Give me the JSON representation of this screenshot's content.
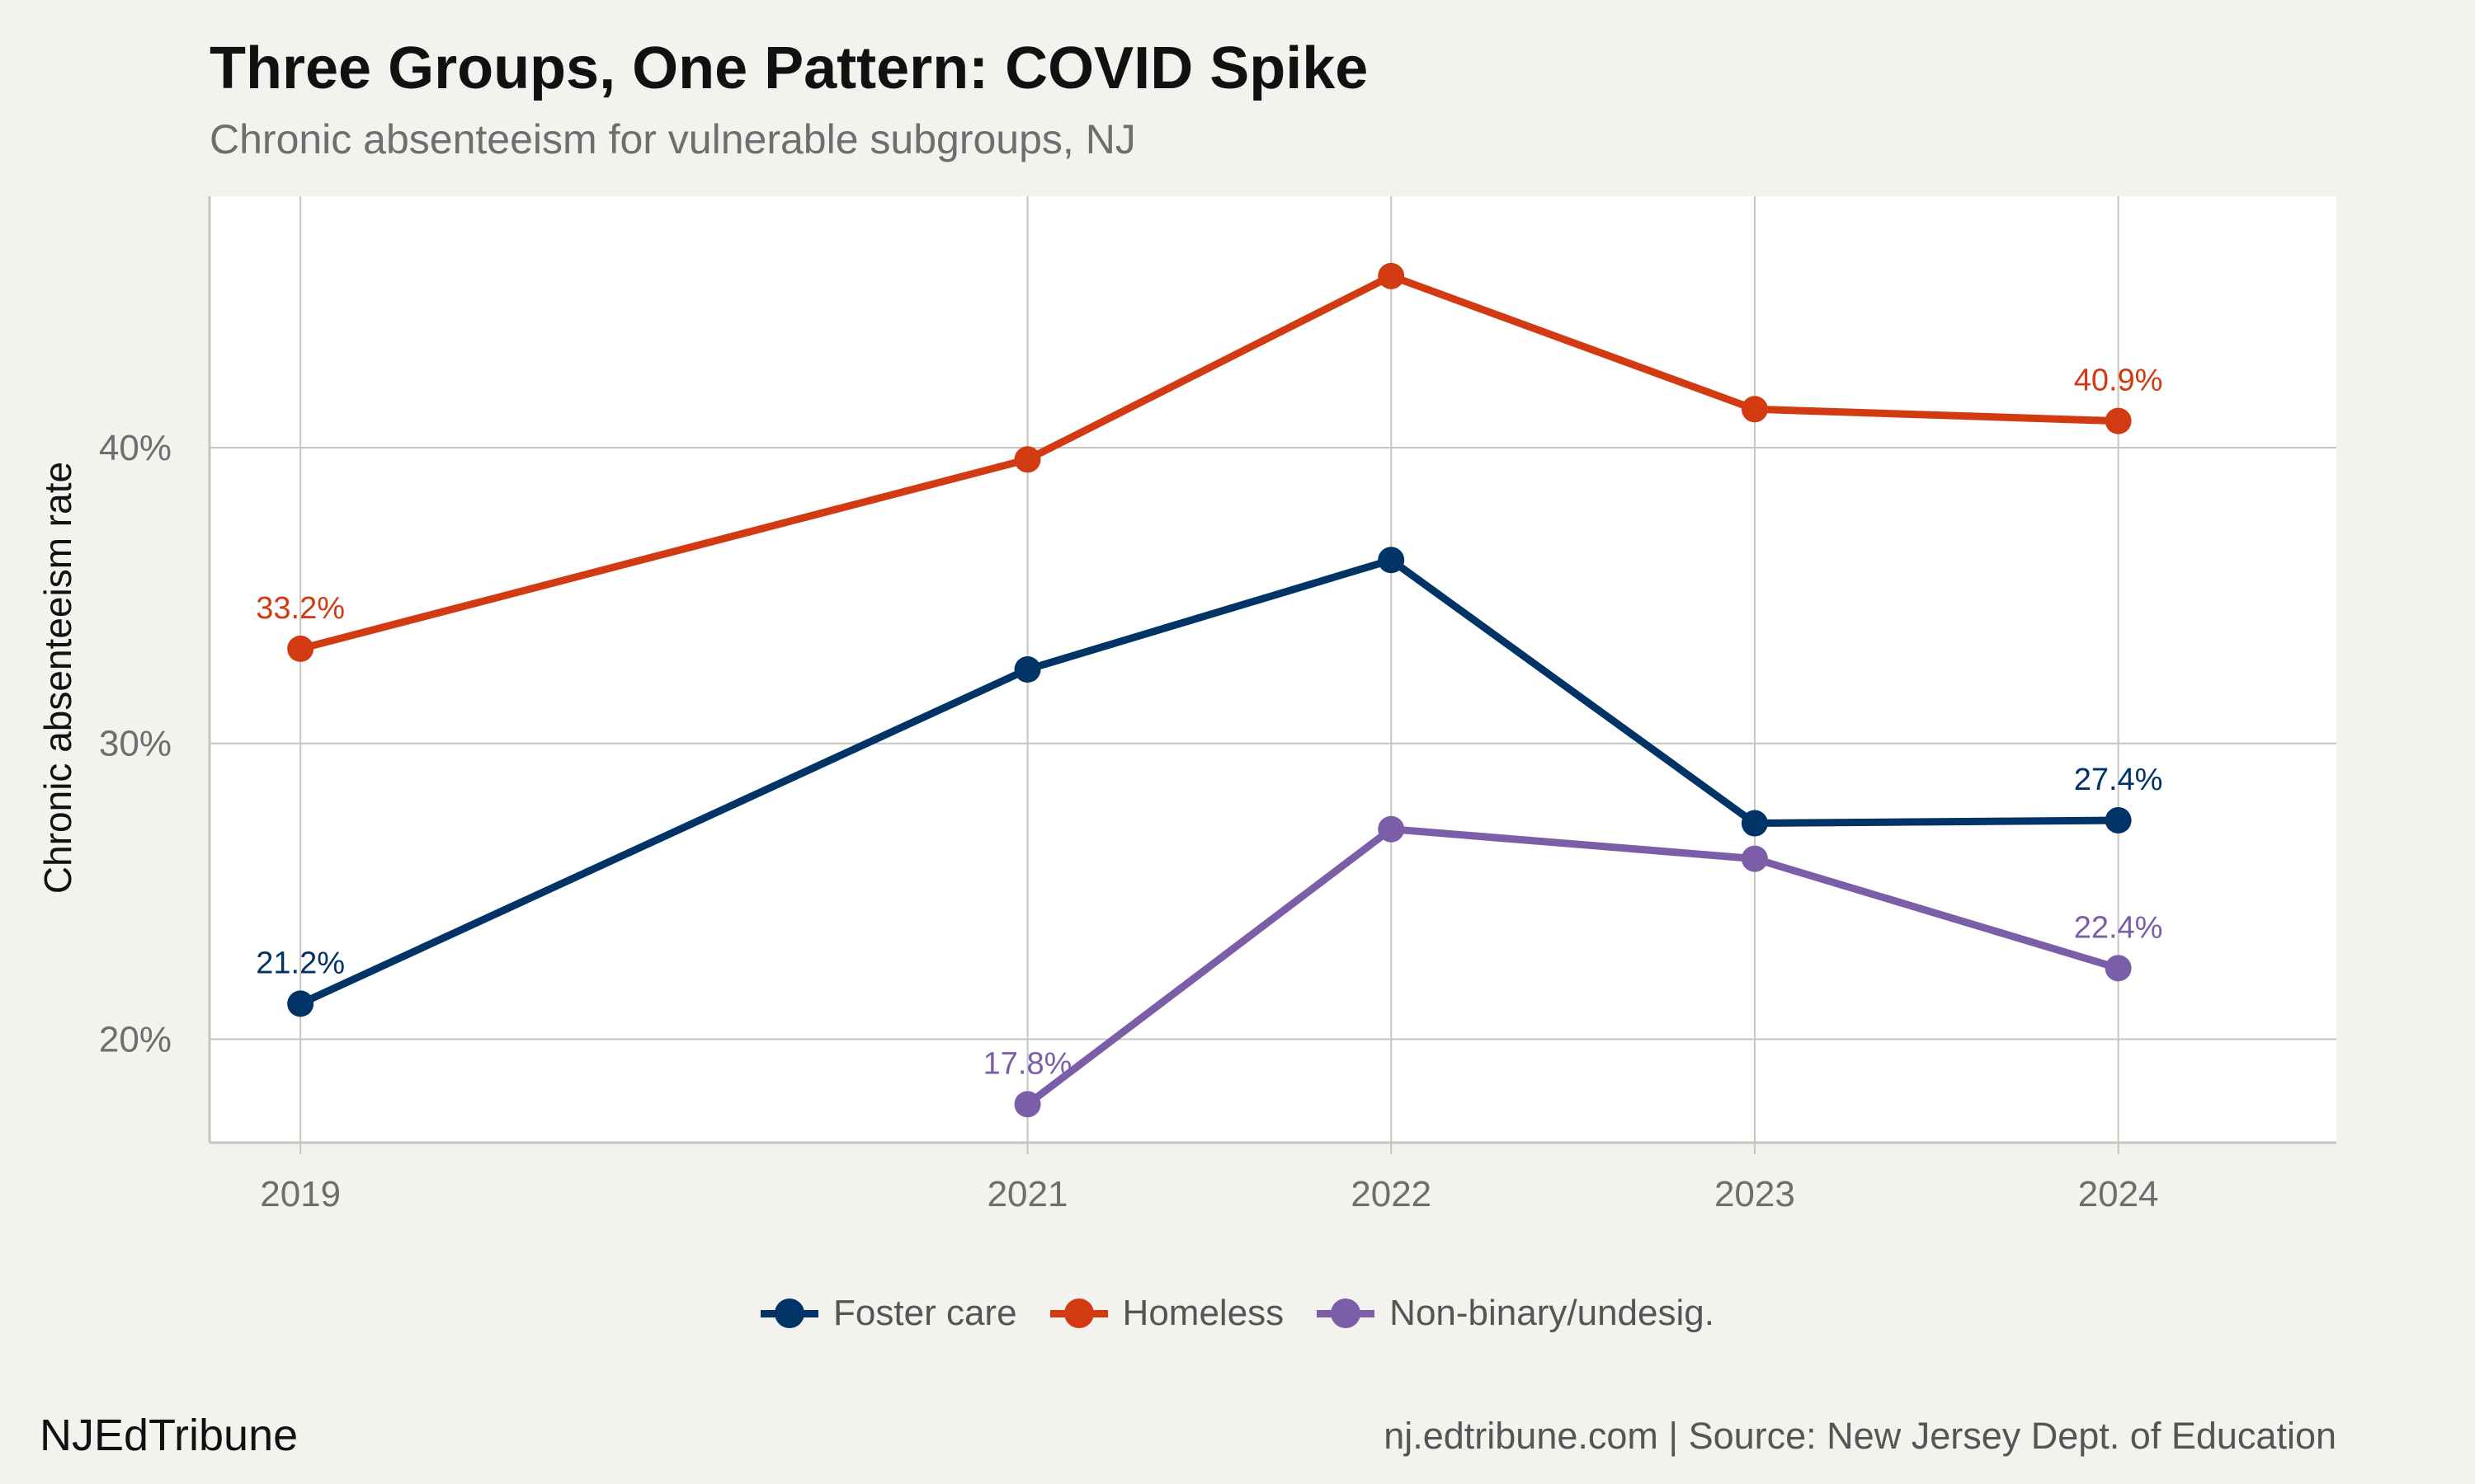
{
  "header": {
    "title": "Three Groups, One Pattern: COVID Spike",
    "subtitle": "Chronic absenteeism for vulnerable subgroups, NJ"
  },
  "footer": {
    "brand": "NJEdTribune",
    "source": "nj.edtribune.com | Source: New Jersey Dept. of Education"
  },
  "colors": {
    "background": "#F4F2EE",
    "panel": "#FFFFFF",
    "grid": "#C8C5C0",
    "axis_text": "#6E6E6E"
  },
  "chart_data": {
    "type": "line",
    "title": "Three Groups, One Pattern: COVID Spike",
    "subtitle": "Chronic absenteeism for vulnerable subgroups, NJ",
    "xlabel": "",
    "ylabel": "Chronic absenteeism rate",
    "x_ticks": [
      2019,
      2021,
      2022,
      2023,
      2024
    ],
    "xlim": [
      2018.75,
      2024.6
    ],
    "ylim": [
      16.5,
      48.5
    ],
    "y_ticks": [
      20,
      30,
      40
    ],
    "y_tick_labels": [
      "20%",
      "30%",
      "40%"
    ],
    "grid": true,
    "legend_position": "bottom",
    "series": [
      {
        "name": "Foster care",
        "color": "#003366",
        "points": [
          {
            "x": 2019,
            "y": 21.2
          },
          {
            "x": 2021,
            "y": 32.5
          },
          {
            "x": 2022,
            "y": 36.2
          },
          {
            "x": 2023,
            "y": 27.3
          },
          {
            "x": 2024,
            "y": 27.4
          }
        ],
        "labels": [
          {
            "x": 2019,
            "y": 21.2,
            "text": "21.2%"
          },
          {
            "x": 2024,
            "y": 27.4,
            "text": "27.4%"
          }
        ]
      },
      {
        "name": "Homeless",
        "color": "#D23B12",
        "points": [
          {
            "x": 2019,
            "y": 33.2
          },
          {
            "x": 2021,
            "y": 39.6
          },
          {
            "x": 2022,
            "y": 45.8
          },
          {
            "x": 2023,
            "y": 41.3
          },
          {
            "x": 2024,
            "y": 40.9
          }
        ],
        "labels": [
          {
            "x": 2019,
            "y": 33.2,
            "text": "33.2%"
          },
          {
            "x": 2024,
            "y": 40.9,
            "text": "40.9%"
          }
        ]
      },
      {
        "name": "Non-binary/undesig.",
        "color": "#7B5EA7",
        "points": [
          {
            "x": 2021,
            "y": 17.8
          },
          {
            "x": 2022,
            "y": 27.1
          },
          {
            "x": 2023,
            "y": 26.1
          },
          {
            "x": 2024,
            "y": 22.4
          }
        ],
        "labels": [
          {
            "x": 2021,
            "y": 17.8,
            "text": "17.8%"
          },
          {
            "x": 2024,
            "y": 22.4,
            "text": "22.4%"
          }
        ]
      }
    ]
  }
}
